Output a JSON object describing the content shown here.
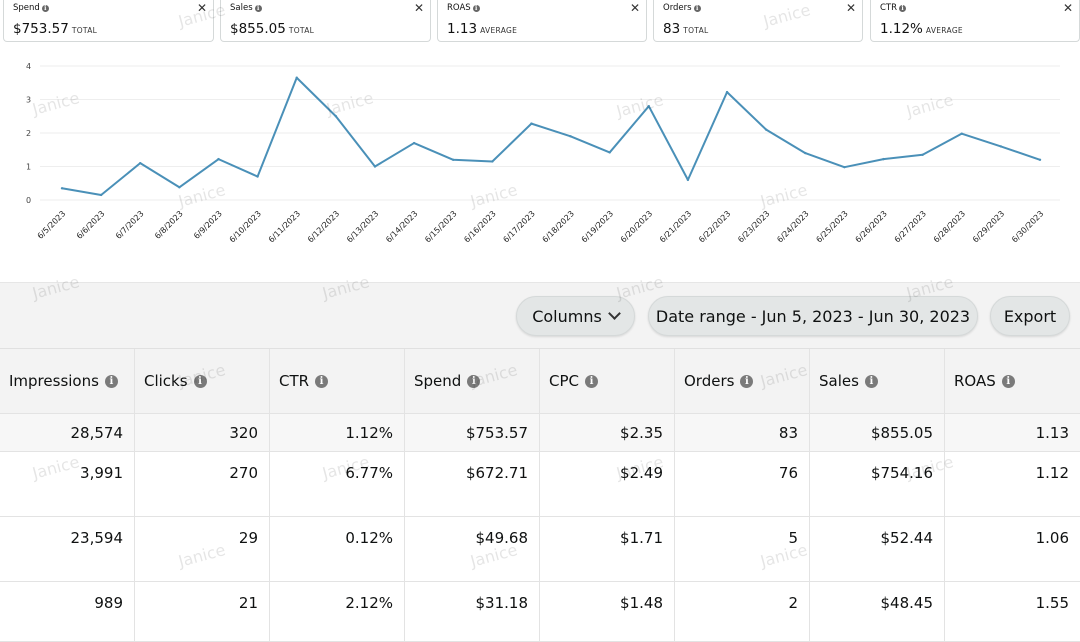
{
  "metrics": [
    {
      "label": "Spend",
      "value": "$753.57",
      "agg": "TOTAL"
    },
    {
      "label": "Sales",
      "value": "$855.05",
      "agg": "TOTAL"
    },
    {
      "label": "ROAS",
      "value": "1.13",
      "agg": "AVERAGE"
    },
    {
      "label": "Orders",
      "value": "83",
      "agg": "TOTAL"
    },
    {
      "label": "CTR",
      "value": "1.12%",
      "agg": "AVERAGE"
    }
  ],
  "chart_data": {
    "type": "line",
    "x": [
      "6/5/2023",
      "6/6/2023",
      "6/7/2023",
      "6/8/2023",
      "6/9/2023",
      "6/10/2023",
      "6/11/2023",
      "6/12/2023",
      "6/13/2023",
      "6/14/2023",
      "6/15/2023",
      "6/16/2023",
      "6/17/2023",
      "6/18/2023",
      "6/19/2023",
      "6/20/2023",
      "6/21/2023",
      "6/22/2023",
      "6/23/2023",
      "6/24/2023",
      "6/25/2023",
      "6/26/2023",
      "6/27/2023",
      "6/28/2023",
      "6/29/2023",
      "6/30/2023"
    ],
    "series": [
      {
        "values": [
          0.35,
          0.15,
          1.1,
          0.38,
          1.22,
          0.7,
          3.65,
          2.5,
          1.0,
          1.7,
          1.2,
          1.15,
          2.28,
          1.9,
          1.42,
          2.8,
          0.6,
          3.22,
          2.1,
          1.4,
          0.98,
          1.22,
          1.35,
          1.98,
          1.6,
          1.2
        ]
      }
    ],
    "yticks": [
      "0",
      "1",
      "2",
      "3",
      "4"
    ],
    "ylim": [
      0,
      4
    ],
    "line_color": "#4a90b8",
    "grid": true
  },
  "toolbar": {
    "columns_label": "Columns",
    "date_range_label": "Date range - Jun 5, 2023 - Jun 30, 2023",
    "export_label": "Export"
  },
  "table": {
    "headers": [
      "Impressions",
      "Clicks",
      "CTR",
      "Spend",
      "CPC",
      "Orders",
      "Sales",
      "ROAS"
    ],
    "total": [
      "28,574",
      "320",
      "1.12%",
      "$753.57",
      "$2.35",
      "83",
      "$855.05",
      "1.13"
    ],
    "rows": [
      [
        "3,991",
        "270",
        "6.77%",
        "$672.71",
        "$2.49",
        "76",
        "$754.16",
        "1.12"
      ],
      [
        "23,594",
        "29",
        "0.12%",
        "$49.68",
        "$1.71",
        "5",
        "$52.44",
        "1.06"
      ],
      [
        "989",
        "21",
        "2.12%",
        "$31.18",
        "$1.48",
        "2",
        "$48.45",
        "1.55"
      ]
    ]
  },
  "watermark": "Janice"
}
